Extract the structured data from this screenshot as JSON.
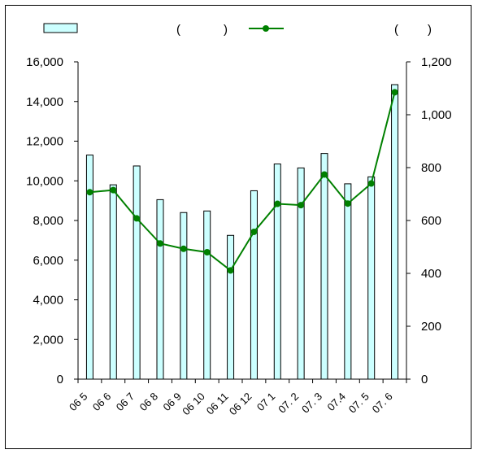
{
  "colors": {
    "bar_fill": "#ccffff",
    "bar_stroke": "#000000",
    "line": "#008000",
    "axis": "#000000"
  },
  "chart_data": {
    "type": "bar+line",
    "categories": [
      "06 5",
      "06 6",
      "06 7",
      "06 8",
      "06 9",
      "06 10",
      "06 11",
      "06 12",
      "07 1",
      "07. 2",
      "07. 3",
      "07.4",
      "07. 5",
      "07. 6"
    ],
    "series": [
      {
        "type": "bar",
        "axis": "left",
        "values": [
          11300,
          9800,
          10750,
          9050,
          8400,
          8480,
          7250,
          9500,
          10850,
          10650,
          11380,
          9850,
          10200,
          14850
        ]
      },
      {
        "type": "line",
        "axis": "right",
        "values": [
          707,
          715,
          608,
          513,
          493,
          480,
          411,
          557,
          663,
          658,
          774,
          664,
          740,
          1085
        ]
      }
    ],
    "legend": {
      "paren_left_open": "(",
      "paren_left_close": ")",
      "paren_right_open": "(",
      "paren_right_close": ")"
    },
    "y_left": {
      "ylim": [
        0,
        16000
      ],
      "ticks": [
        0,
        2000,
        4000,
        6000,
        8000,
        10000,
        12000,
        14000,
        16000
      ],
      "tick_labels": [
        "0",
        "2,000",
        "4,000",
        "6,000",
        "8,000",
        "10,000",
        "12,000",
        "14,000",
        "16,000"
      ]
    },
    "y_right": {
      "ylim": [
        0,
        1200
      ],
      "ticks": [
        0,
        200,
        400,
        600,
        800,
        1000,
        1200
      ],
      "tick_labels": [
        "0",
        "200",
        "400",
        "600",
        "800",
        "1,000",
        "1,200"
      ]
    },
    "grid": false,
    "legend_position": "top"
  }
}
